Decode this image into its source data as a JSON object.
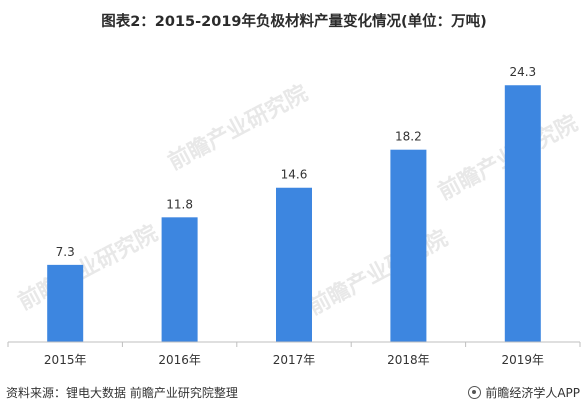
{
  "title": "图表2：2015-2019年负极材料产量变化情况(单位：万吨)",
  "source": "资料来源：锂电大数据 前瞻产业研究院整理",
  "brand": "前瞻经济学人APP",
  "watermark": "前瞻产业研究院",
  "colors": {
    "bar": "#3d86e0",
    "axis": "#bfbfbf",
    "text": "#333333"
  },
  "chart_data": {
    "type": "bar",
    "categories": [
      "2015年",
      "2016年",
      "2017年",
      "2018年",
      "2019年"
    ],
    "values": [
      7.3,
      11.8,
      14.6,
      18.2,
      24.3
    ],
    "title": "图表2：2015-2019年负极材料产量变化情况(单位：万吨)",
    "xlabel": "",
    "ylabel": "",
    "ylim": [
      0,
      26.5
    ],
    "grid": false,
    "legend": "none",
    "data_labels": true
  }
}
